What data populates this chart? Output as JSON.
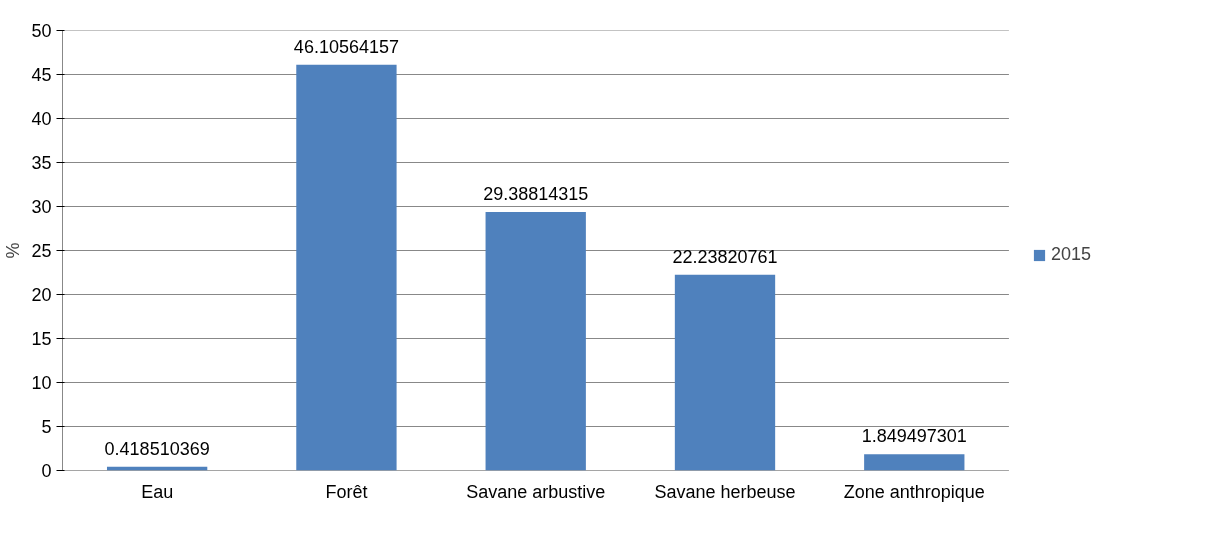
{
  "chart_data": {
    "type": "bar",
    "ylabel": "%",
    "categories": [
      "Eau",
      "Forêt",
      "Savane arbustive",
      "Savane herbeuse",
      "Zone anthropique"
    ],
    "series": [
      {
        "name": "2015",
        "color": "#4f81bd",
        "values": [
          0.418510369,
          46.10564157,
          29.38814315,
          22.23820761,
          1.849497301
        ]
      }
    ],
    "ylim": [
      0,
      50
    ],
    "yticks": [
      0,
      5,
      10,
      15,
      20,
      25,
      30,
      35,
      40,
      45,
      50
    ],
    "grid": "y",
    "legend": "right",
    "data_labels": true
  }
}
